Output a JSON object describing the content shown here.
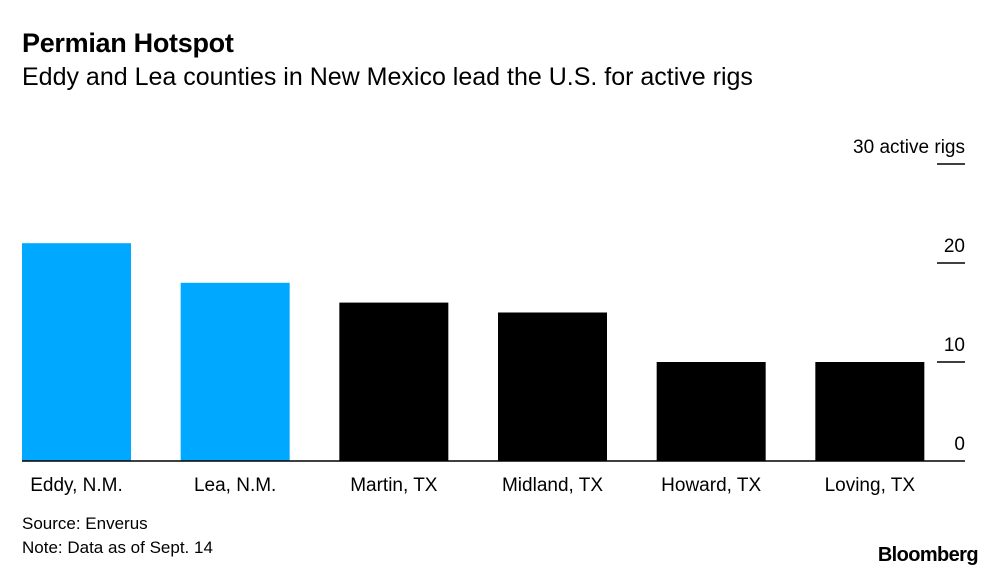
{
  "header": {
    "title": "Permian Hotspot",
    "subtitle": "Eddy and Lea counties in New Mexico lead the U.S. for active rigs"
  },
  "chart_data": {
    "type": "bar",
    "categories": [
      "Eddy, N.M.",
      "Lea, N.M.",
      "Martin, TX",
      "Midland, TX",
      "Howard, TX",
      "Loving, TX"
    ],
    "values": [
      22,
      18,
      16,
      15,
      10,
      10
    ],
    "colors": [
      "#00a8ff",
      "#00a8ff",
      "#000000",
      "#000000",
      "#000000",
      "#000000"
    ],
    "ylim": [
      0,
      30
    ],
    "yticks": [
      0,
      10,
      20,
      30
    ],
    "ytick_labels": [
      "0",
      "10",
      "20",
      "30 active rigs"
    ],
    "grid": false,
    "axis_position": "right"
  },
  "footer": {
    "source": "Source: Enverus",
    "note": "Note: Data as of Sept. 14"
  },
  "branding": {
    "logo_text": "Bloomberg"
  }
}
